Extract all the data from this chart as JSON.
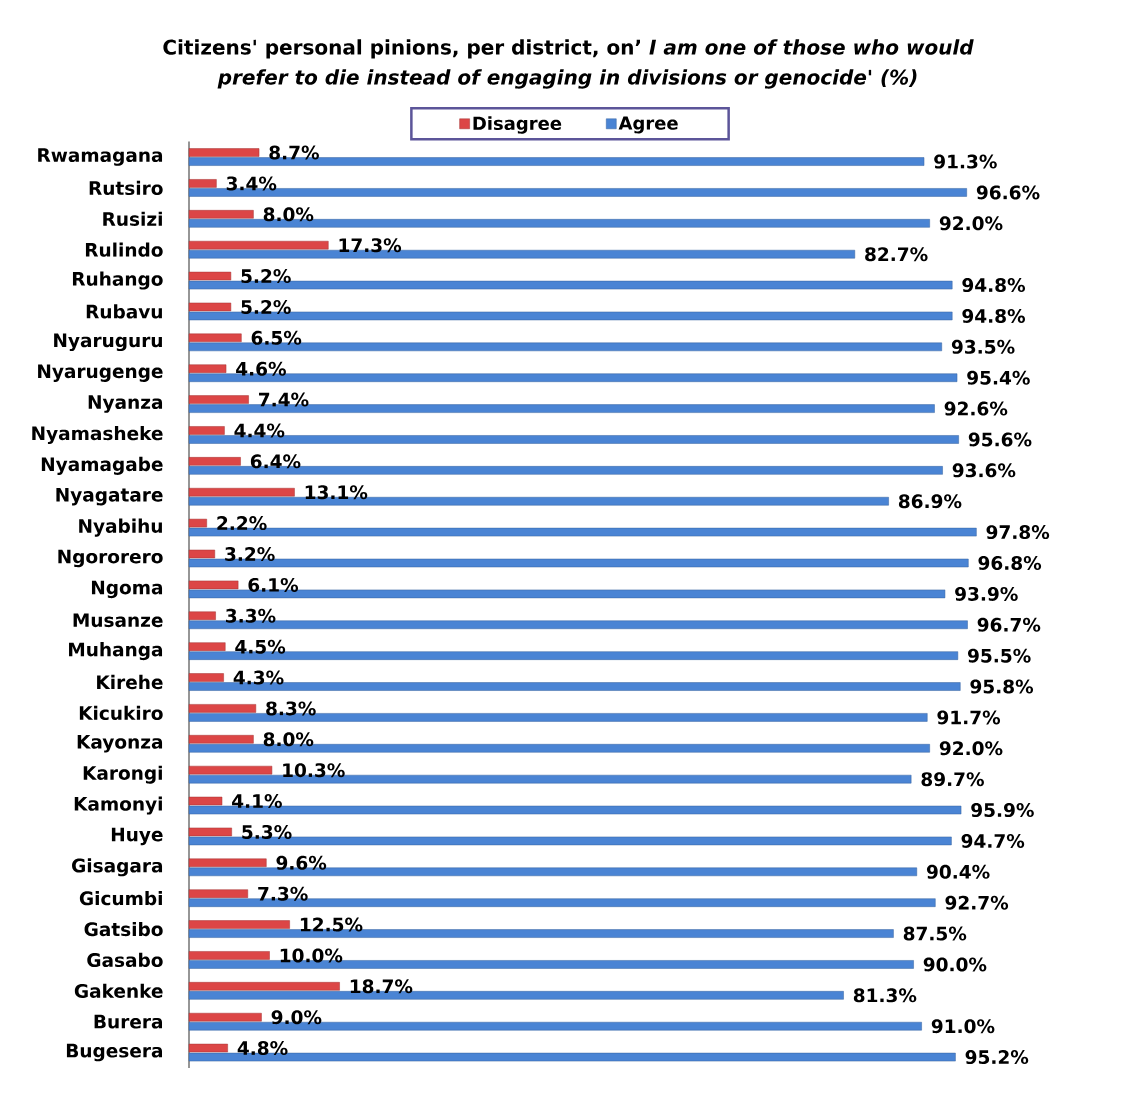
{
  "chart_data": {
    "type": "bar",
    "orientation": "horizontal",
    "title": "Citizens' personal pinions, per district, on’ *I am one of those who would prefer to die instead of engaging in divisions or genocide' (%)*",
    "categories": [
      "Rwamagana",
      "Rutsiro",
      "Rusizi",
      "Rulindo",
      "Ruhango",
      "Rubavu",
      "Nyaruguru",
      "Nyarugenge",
      "Nyanza",
      "Nyamasheke",
      "Nyamagabe",
      "Nyagatare",
      "Nyabihu",
      "Ngororero",
      "Ngoma",
      "Musanze",
      "Muhanga",
      "Kirehe",
      "Kicukiro",
      "Kayonza",
      "Karongi",
      "Kamonyi",
      "Huye",
      "Gisagara",
      "Gicumbi",
      "Gatsibo",
      "Gasabo",
      "Gakenke",
      "Burera",
      "Bugesera"
    ],
    "series": [
      {
        "name": "Disagree",
        "color": "#dc4646",
        "values": [
          8.7,
          3.4,
          8.0,
          17.3,
          5.2,
          5.2,
          6.5,
          4.6,
          7.4,
          4.4,
          6.4,
          13.1,
          2.2,
          3.2,
          6.1,
          3.3,
          4.5,
          4.3,
          8.3,
          8.0,
          10.3,
          4.1,
          5.3,
          9.6,
          7.3,
          12.5,
          10.0,
          18.7,
          9.0,
          4.8
        ],
        "value_labels": [
          "8.7%",
          "3.4%",
          "8.0%",
          "17.3%",
          "5.2%",
          "5.2%",
          "6.5%",
          "4.6%",
          "7.4%",
          "4.4%",
          "6.4%",
          "13.1%",
          "2.2%",
          "3.2%",
          "6.1%",
          "3.3%",
          "4.5%",
          "4.3%",
          "8.3%",
          "8.0%",
          "10.3%",
          "4.1%",
          "5.3%",
          "9.6%",
          "7.3%",
          "12.5%",
          "10.0%",
          "18.7%",
          "9.0%",
          "4.8%"
        ]
      },
      {
        "name": "Agree",
        "color": "#4a84d4",
        "values": [
          91.3,
          96.6,
          92.0,
          82.7,
          94.8,
          94.8,
          93.5,
          95.4,
          92.6,
          95.6,
          93.6,
          86.9,
          97.8,
          96.8,
          93.9,
          96.7,
          95.5,
          95.8,
          91.7,
          92.0,
          89.7,
          95.9,
          94.7,
          90.4,
          92.7,
          87.5,
          90.0,
          81.3,
          91.0,
          95.2
        ],
        "value_labels": [
          "91.3%",
          "96.6%",
          "92.0%",
          "82.7%",
          "94.8%",
          "94.8%",
          "93.5%",
          "95.4%",
          "92.6%",
          "95.6%",
          "93.6%",
          "86.9%",
          "97.8%",
          "96.8%",
          "93.9%",
          "96.7%",
          "95.5%",
          "95.8%",
          "91.7%",
          "92.0%",
          "89.7%",
          "95.9%",
          "94.7%",
          "90.4%",
          "92.7%",
          "87.5%",
          "90.0%",
          "81.3%",
          "91.0%",
          "95.2%"
        ]
      }
    ],
    "tick_labels": "y",
    "legend": "top"
  }
}
